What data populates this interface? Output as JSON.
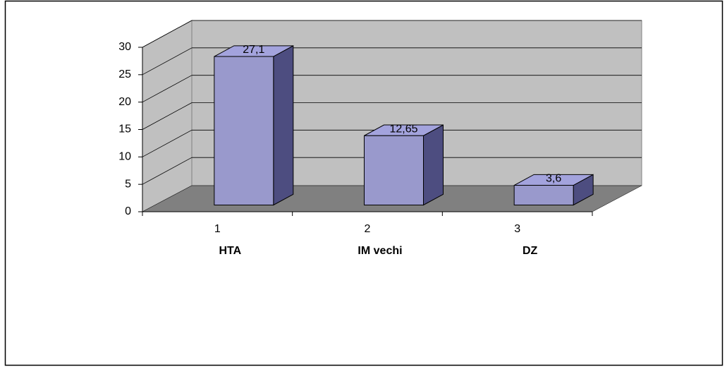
{
  "chart_data": {
    "type": "bar3d",
    "categories": [
      "1",
      "2",
      "3"
    ],
    "category_names": [
      "HTA",
      "IM vechi",
      "DZ"
    ],
    "values": [
      27.1,
      12.65,
      3.6
    ],
    "value_labels": [
      "27,1",
      "12,65",
      "3,6"
    ],
    "color": "#9999cc",
    "ylim": [
      0,
      30
    ],
    "yticks": [
      0,
      5,
      10,
      15,
      20,
      25,
      30
    ],
    "grid": true
  }
}
